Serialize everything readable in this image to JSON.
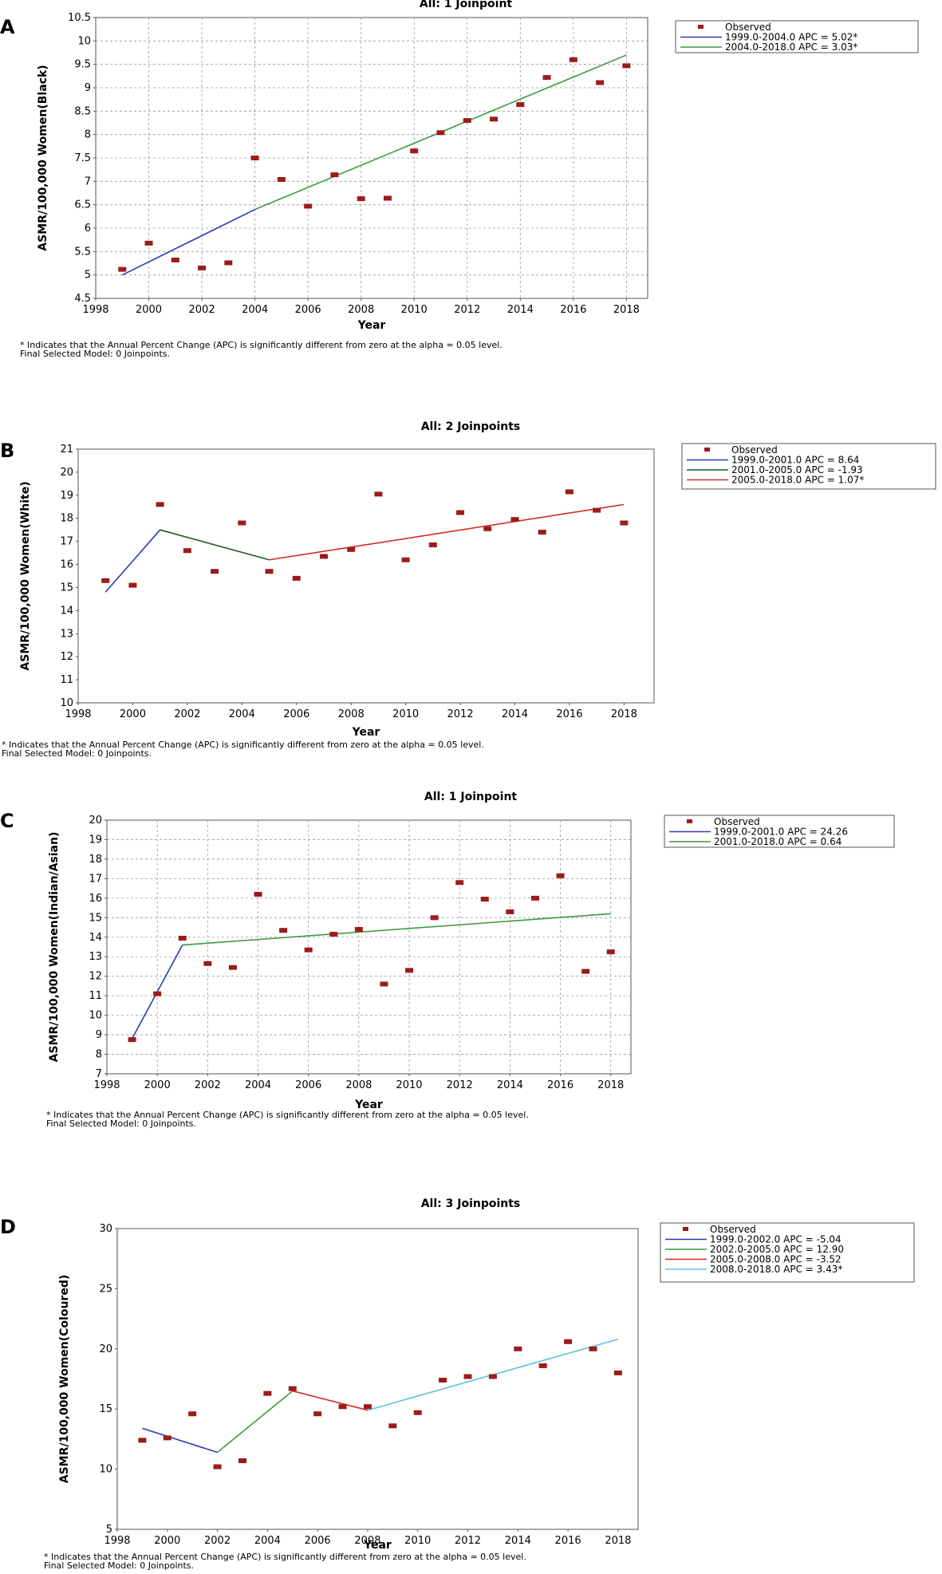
{
  "panels": [
    {
      "label": "A",
      "chart_data": {
        "type": "scatter",
        "title": "All: 1 Joinpoint",
        "xlabel": "Year",
        "ylabel": "ASMR/100,000 Women(Black)",
        "xlim": [
          1998,
          2018.8
        ],
        "ylim": [
          4.5,
          10.5
        ],
        "xticks": [
          1998,
          2000,
          2002,
          2004,
          2006,
          2008,
          2010,
          2012,
          2014,
          2016,
          2018
        ],
        "yticks": [
          "4.5",
          "5",
          "5.5",
          "6",
          "6.5",
          "7",
          "7.5",
          "8",
          "8.5",
          "9",
          "9.5",
          "10",
          "10.5"
        ],
        "grid": true,
        "legend_position": "right",
        "observed": {
          "name": "Observed",
          "color": "#9b1b1b",
          "x": [
            1999,
            2000,
            2001,
            2002,
            2003,
            2004,
            2005,
            2006,
            2007,
            2008,
            2009,
            2010,
            2011,
            2012,
            2013,
            2014,
            2015,
            2016,
            2017,
            2018
          ],
          "y": [
            5.12,
            5.68,
            5.32,
            5.15,
            5.26,
            7.5,
            7.04,
            6.47,
            7.14,
            6.63,
            6.64,
            7.65,
            8.04,
            8.3,
            8.33,
            8.64,
            9.22,
            9.6,
            9.11,
            9.47
          ]
        },
        "series": [
          {
            "name": "1999.0-2004.0 APC  = 5.02*",
            "color": "#2b3bb5",
            "x": [
              1999,
              2004
            ],
            "y": [
              5.0,
              6.4
            ]
          },
          {
            "name": "2004.0-2018.0 APC  = 3.03*",
            "color": "#3c9a3c",
            "x": [
              2004,
              2018
            ],
            "y": [
              6.4,
              9.7
            ]
          }
        ],
        "footnote": [
          "* Indicates that the Annual Percent Change (APC) is significantly different from zero at the alpha = 0.05 level.",
          "Final Selected Model: 0 Joinpoints."
        ]
      }
    },
    {
      "label": "B",
      "chart_data": {
        "type": "scatter",
        "title": "All: 2 Joinpoints",
        "xlabel": "Year",
        "ylabel": "ASMR/100,000 Women(White)",
        "xlim": [
          1998,
          2019.1
        ],
        "ylim": [
          10,
          21
        ],
        "xticks": [
          1998,
          2000,
          2002,
          2004,
          2006,
          2008,
          2010,
          2012,
          2014,
          2016,
          2018
        ],
        "yticks": [
          "10",
          "11",
          "12",
          "13",
          "14",
          "15",
          "16",
          "17",
          "18",
          "19",
          "20",
          "21"
        ],
        "grid": false,
        "legend_position": "right",
        "observed": {
          "name": "Observed",
          "color": "#9b1b1b",
          "x": [
            1999,
            2000,
            2001,
            2002,
            2003,
            2004,
            2005,
            2006,
            2007,
            2008,
            2009,
            2010,
            2011,
            2012,
            2013,
            2014,
            2015,
            2016,
            2017,
            2018
          ],
          "y": [
            15.3,
            15.1,
            18.6,
            16.6,
            15.7,
            17.8,
            15.7,
            15.4,
            16.35,
            16.65,
            19.05,
            16.2,
            16.85,
            18.25,
            17.55,
            17.95,
            17.4,
            19.15,
            18.35,
            17.8
          ]
        },
        "series": [
          {
            "name": "1999.0-2001.0 APC  =  8.64",
            "color": "#2b3bb5",
            "x": [
              1999,
              2001
            ],
            "y": [
              14.8,
              17.5
            ]
          },
          {
            "name": "2001.0-2005.0 APC  = -1.93",
            "color": "#1d5a1d",
            "x": [
              2001,
              2005
            ],
            "y": [
              17.5,
              16.2
            ]
          },
          {
            "name": "2005.0-2018.0 APC  = 1.07*",
            "color": "#d42a2a",
            "x": [
              2005,
              2018
            ],
            "y": [
              16.2,
              18.6
            ]
          }
        ],
        "footnote": [
          "* Indicates that the Annual Percent Change (APC) is significantly different from zero at the alpha = 0.05 level.",
          "Final Selected Model: 0 Joinpoints."
        ]
      }
    },
    {
      "label": "C",
      "chart_data": {
        "type": "scatter",
        "title": "All: 1 Joinpoint",
        "xlabel": "Year",
        "ylabel": "ASMR/100,000 Women(Indian/Asian)",
        "xlim": [
          1998,
          2018.8
        ],
        "ylim": [
          7,
          20
        ],
        "xticks": [
          1998,
          2000,
          2002,
          2004,
          2006,
          2008,
          2010,
          2012,
          2014,
          2016,
          2018
        ],
        "yticks": [
          "7",
          "8",
          "9",
          "10",
          "11",
          "12",
          "13",
          "14",
          "15",
          "16",
          "17",
          "18",
          "19",
          "20"
        ],
        "grid": true,
        "legend_position": "right",
        "observed": {
          "name": "Observed",
          "color": "#9b1b1b",
          "x": [
            1999,
            2000,
            2001,
            2002,
            2003,
            2004,
            2005,
            2006,
            2007,
            2008,
            2009,
            2010,
            2011,
            2012,
            2013,
            2014,
            2015,
            2016,
            2017,
            2018
          ],
          "y": [
            8.75,
            11.1,
            13.95,
            12.65,
            12.45,
            16.2,
            14.35,
            13.35,
            14.15,
            14.4,
            11.6,
            12.3,
            15.0,
            16.8,
            15.95,
            15.3,
            16.0,
            17.15,
            12.25,
            13.25
          ]
        },
        "series": [
          {
            "name": "1999.0-2001.0 APC  = 24.26",
            "color": "#2b3bb5",
            "x": [
              1999,
              2001
            ],
            "y": [
              8.8,
              13.6
            ]
          },
          {
            "name": "2001.0-2018.0 APC  = 0.64",
            "color": "#3c9a3c",
            "x": [
              2001,
              2018
            ],
            "y": [
              13.6,
              15.2
            ]
          }
        ],
        "footnote": [
          "* Indicates that the Annual Percent Change (APC) is significantly different from zero at the alpha = 0.05 level.",
          "Final Selected Model: 0 Joinpoints."
        ]
      }
    },
    {
      "label": "D",
      "chart_data": {
        "type": "scatter",
        "title": "All: 3 Joinpoints",
        "xlabel": "Year",
        "ylabel": "ASMR/100,000 Women(Coloured)",
        "xlim": [
          1998,
          2018.8
        ],
        "ylim": [
          5,
          30
        ],
        "xticks": [
          1998,
          2000,
          2002,
          2004,
          2006,
          2008,
          2010,
          2012,
          2014,
          2016,
          2018
        ],
        "yticks": [
          "5",
          "10",
          "15",
          "20",
          "25",
          "30"
        ],
        "grid": false,
        "legend_position": "right",
        "observed": {
          "name": "Observed",
          "color": "#9b1b1b",
          "x": [
            1999,
            2000,
            2001,
            2002,
            2003,
            2004,
            2005,
            2006,
            2007,
            2008,
            2009,
            2010,
            2011,
            2012,
            2013,
            2014,
            2015,
            2016,
            2017,
            2018
          ],
          "y": [
            12.4,
            12.6,
            14.6,
            10.2,
            10.7,
            16.3,
            16.7,
            14.6,
            15.2,
            15.2,
            13.6,
            14.7,
            17.4,
            17.7,
            17.7,
            20.0,
            18.6,
            20.6,
            20.0,
            18.0
          ]
        },
        "series": [
          {
            "name": "1999.0-2002.0 APC  = -5.04",
            "color": "#2b3bb5",
            "x": [
              1999,
              2002
            ],
            "y": [
              13.4,
              11.4
            ]
          },
          {
            "name": "2002.0-2005.0 APC  = 12.90",
            "color": "#3c9a3c",
            "x": [
              2002,
              2005
            ],
            "y": [
              11.4,
              16.5
            ]
          },
          {
            "name": "2005.0-2008.0 APC  = -3.52",
            "color": "#d42a2a",
            "x": [
              2005,
              2008
            ],
            "y": [
              16.5,
              14.9
            ]
          },
          {
            "name": "2008.0-2018.0 APC  = 3.43*",
            "color": "#5fc4d8",
            "x": [
              2008,
              2018
            ],
            "y": [
              14.9,
              20.8
            ]
          }
        ],
        "footnote": [
          "* Indicates that the Annual Percent Change (APC) is significantly different from zero at the alpha = 0.05 level.",
          "Final Selected Model: 0 Joinpoints."
        ]
      }
    }
  ]
}
